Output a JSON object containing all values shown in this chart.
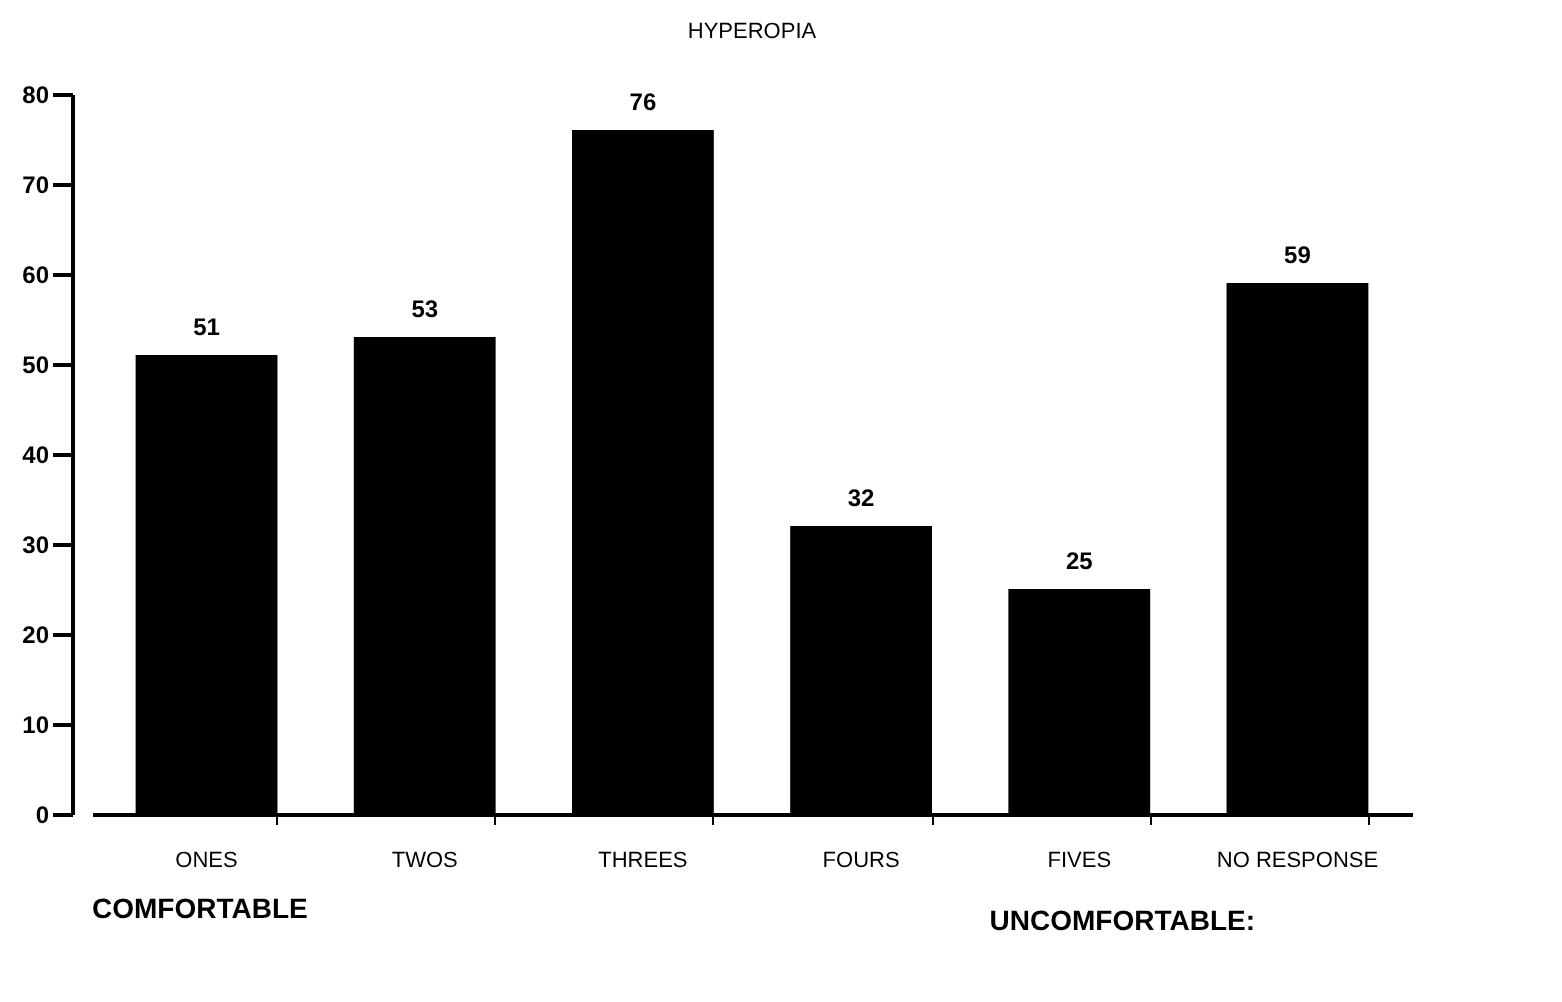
{
  "chart_data": {
    "type": "bar",
    "title": "HYPEROPIA",
    "categories": [
      "ONES",
      "TWOS",
      "THREES",
      "FOURS",
      "FIVES",
      "NO RESPONSE"
    ],
    "values": [
      51,
      53,
      76,
      32,
      25,
      59
    ],
    "color": "#000000",
    "ylim": [
      0,
      80
    ],
    "yticks": [
      0,
      10,
      20,
      30,
      40,
      50,
      60,
      70,
      80
    ],
    "data_labels": true,
    "grid": false,
    "annotations": [
      "COMFORTABLE",
      "UNCOMFORTABLE:"
    ]
  }
}
